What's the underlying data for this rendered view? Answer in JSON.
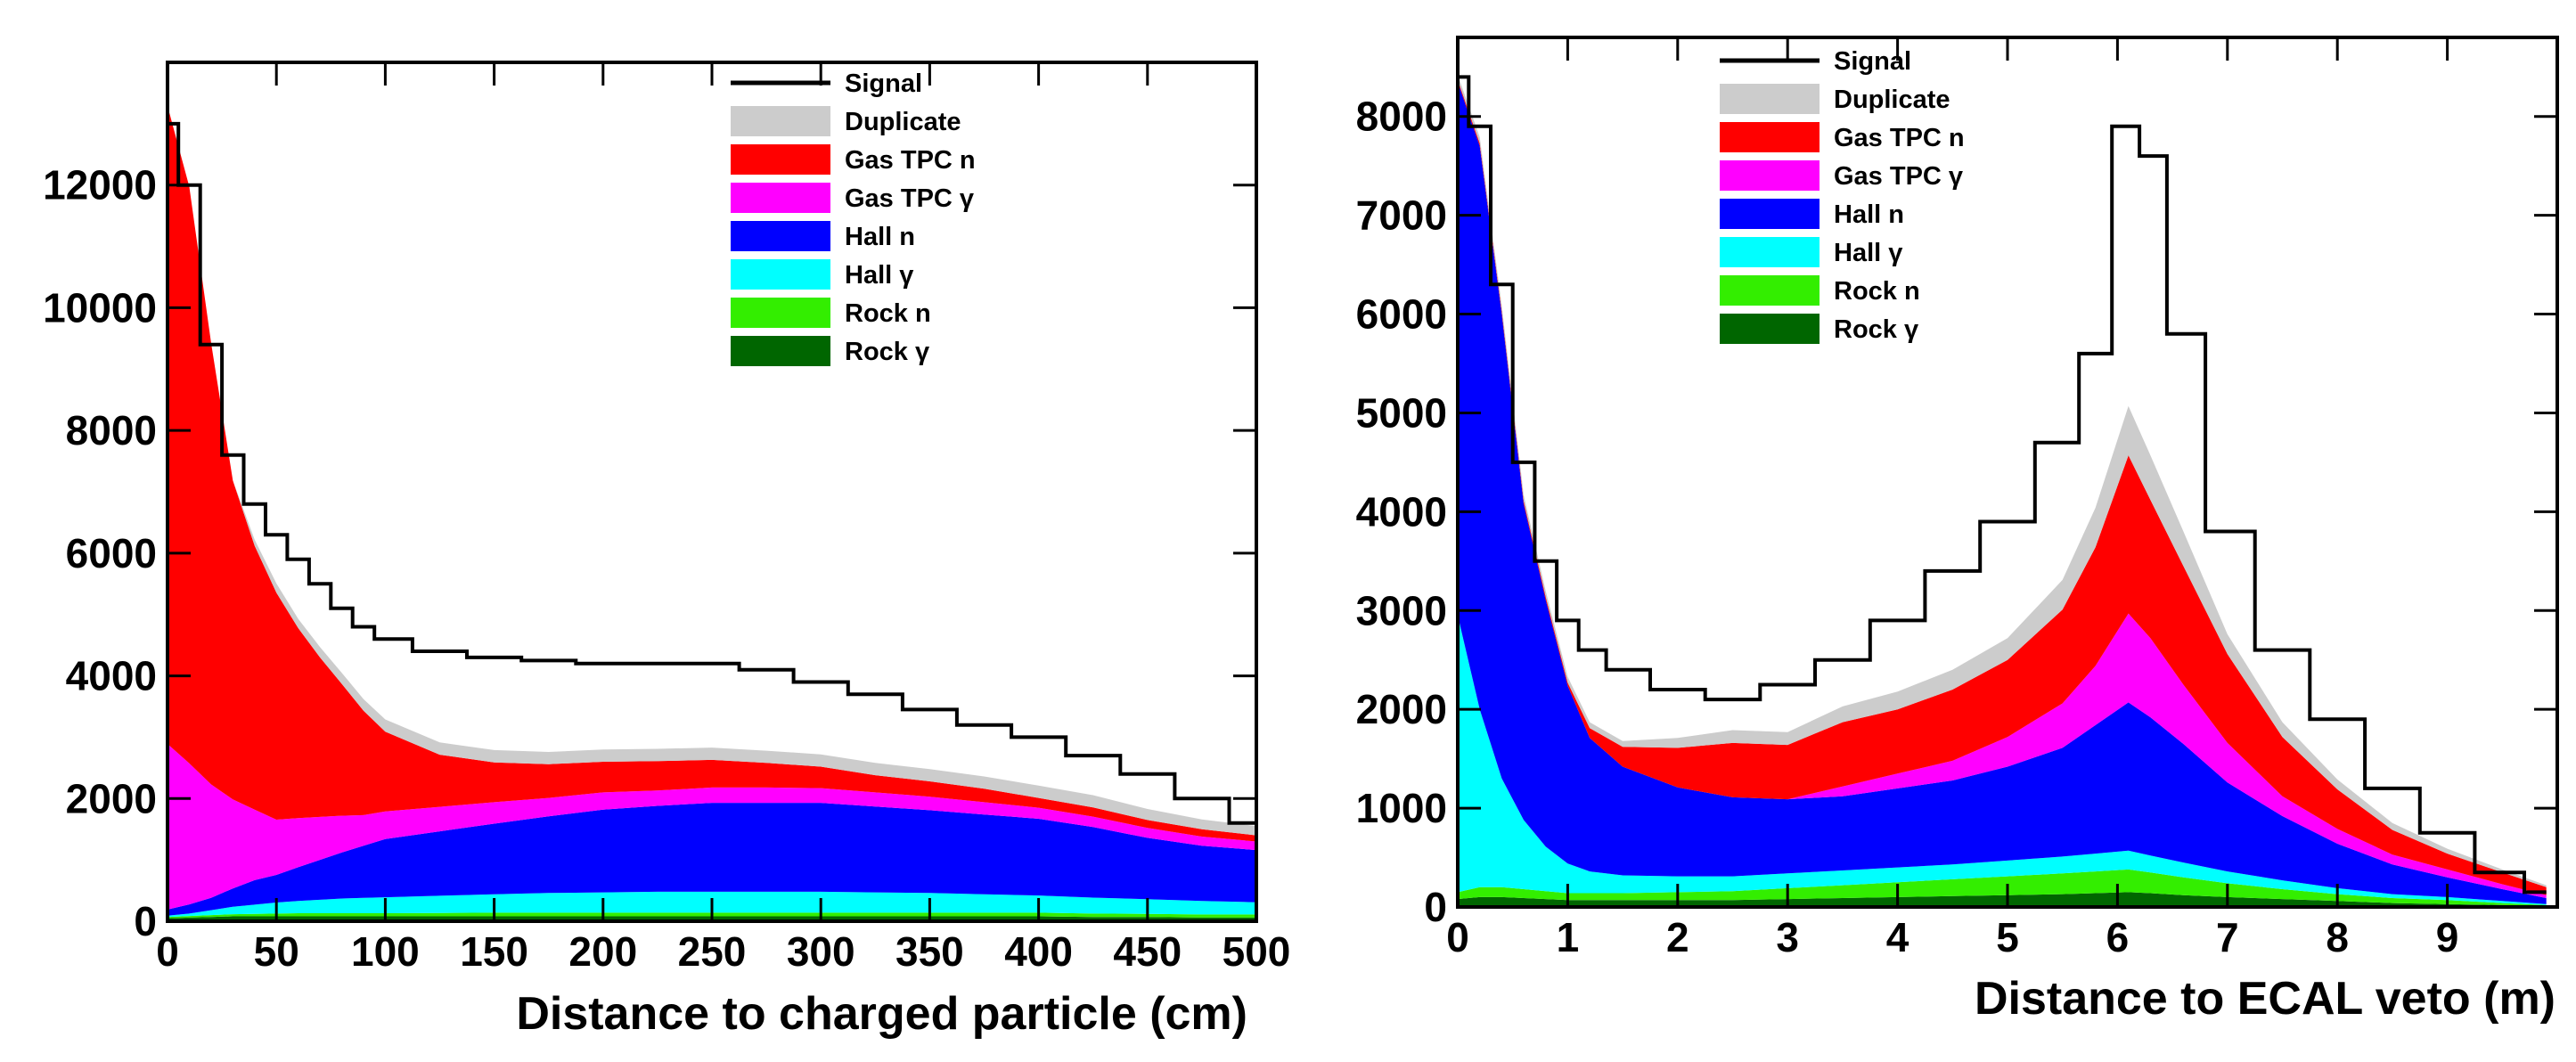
{
  "chart_data": [
    {
      "type": "area",
      "stacked": true,
      "xlabel": "Distance to charged particle (cm)",
      "ylabel": "",
      "xlim": [
        0,
        500
      ],
      "ylim": [
        0,
        14000
      ],
      "x_ticks": [
        "0",
        "50",
        "100",
        "150",
        "200",
        "250",
        "300",
        "350",
        "400",
        "450",
        "500"
      ],
      "y_ticks": [
        "0",
        "2000",
        "4000",
        "6000",
        "8000",
        "10000",
        "12000"
      ],
      "legend_position": "top-right",
      "x": [
        0,
        10,
        20,
        30,
        40,
        50,
        60,
        70,
        80,
        90,
        100,
        125,
        150,
        175,
        200,
        225,
        250,
        275,
        300,
        325,
        350,
        375,
        400,
        425,
        450,
        475,
        500
      ],
      "series": [
        {
          "name": "Rock γ",
          "color": "#006600",
          "values": [
            50,
            60,
            70,
            80,
            80,
            80,
            80,
            80,
            80,
            80,
            80,
            80,
            80,
            80,
            80,
            80,
            80,
            80,
            80,
            80,
            80,
            80,
            80,
            70,
            70,
            60,
            60
          ]
        },
        {
          "name": "Rock n",
          "color": "#33ee00",
          "values": [
            20,
            25,
            30,
            35,
            40,
            45,
            50,
            50,
            50,
            50,
            50,
            55,
            60,
            60,
            60,
            60,
            60,
            60,
            60,
            60,
            60,
            60,
            60,
            55,
            50,
            50,
            50
          ]
        },
        {
          "name": "Hall γ",
          "color": "#00ffff",
          "values": [
            20,
            40,
            80,
            120,
            150,
            180,
            200,
            220,
            240,
            250,
            260,
            280,
            300,
            320,
            330,
            340,
            340,
            340,
            340,
            330,
            320,
            300,
            280,
            260,
            240,
            220,
            200
          ]
        },
        {
          "name": "Hall n",
          "color": "#0000ff",
          "values": [
            100,
            150,
            200,
            300,
            400,
            450,
            550,
            650,
            750,
            850,
            950,
            1050,
            1150,
            1250,
            1350,
            1400,
            1450,
            1450,
            1450,
            1400,
            1350,
            1300,
            1250,
            1150,
            1000,
            900,
            850
          ]
        },
        {
          "name": "Gas TPC γ",
          "color": "#ff00ff",
          "values": [
            2700,
            2300,
            1850,
            1450,
            1150,
            900,
            800,
            700,
            600,
            500,
            450,
            400,
            350,
            300,
            280,
            250,
            250,
            250,
            240,
            230,
            220,
            200,
            180,
            170,
            160,
            150,
            140
          ]
        },
        {
          "name": "Gas TPC n",
          "color": "#ff0000",
          "values": [
            10400,
            9400,
            7200,
            5200,
            4300,
            3700,
            3100,
            2600,
            2150,
            1700,
            1300,
            850,
            650,
            550,
            500,
            480,
            450,
            400,
            350,
            280,
            250,
            220,
            160,
            150,
            130,
            120,
            100
          ]
        },
        {
          "name": "Duplicate",
          "color": "#cccccc",
          "values": [
            0,
            0,
            0,
            0,
            100,
            150,
            150,
            170,
            180,
            190,
            200,
            200,
            200,
            200,
            200,
            200,
            200,
            200,
            200,
            200,
            200,
            200,
            200,
            200,
            180,
            160,
            150
          ]
        },
        {
          "name": "Signal",
          "color": "#000000",
          "type": "line",
          "values": [
            13000,
            12000,
            9400,
            7600,
            6800,
            6300,
            5900,
            5500,
            5100,
            4800,
            4600,
            4400,
            4300,
            4250,
            4200,
            4200,
            4200,
            4100,
            3900,
            3700,
            3450,
            3200,
            3000,
            2700,
            2400,
            2000,
            1600
          ]
        }
      ]
    },
    {
      "type": "area",
      "stacked": true,
      "xlabel": "Distance to ECAL veto (m)",
      "ylabel": "",
      "xlim": [
        0,
        10
      ],
      "ylim": [
        0,
        8800
      ],
      "x_ticks": [
        "0",
        "1",
        "2",
        "3",
        "4",
        "5",
        "6",
        "7",
        "8",
        "9"
      ],
      "y_ticks": [
        "0",
        "1000",
        "2000",
        "3000",
        "4000",
        "5000",
        "6000",
        "7000",
        "8000"
      ],
      "legend_position": "top-right",
      "x": [
        0,
        0.2,
        0.4,
        0.6,
        0.8,
        1,
        1.2,
        1.5,
        2,
        2.5,
        3,
        3.5,
        4,
        4.5,
        5,
        5.5,
        5.8,
        6.1,
        6.3,
        6.6,
        7,
        7.5,
        8,
        8.5,
        9,
        9.5,
        9.9
      ],
      "series": [
        {
          "name": "Rock γ",
          "color": "#006600",
          "values": [
            80,
            100,
            100,
            90,
            80,
            70,
            70,
            70,
            70,
            70,
            80,
            90,
            100,
            110,
            120,
            130,
            140,
            150,
            140,
            120,
            100,
            80,
            60,
            40,
            30,
            20,
            10
          ]
        },
        {
          "name": "Rock n",
          "color": "#33ee00",
          "values": [
            70,
            100,
            100,
            90,
            80,
            70,
            70,
            70,
            80,
            90,
            110,
            130,
            150,
            170,
            190,
            210,
            220,
            230,
            210,
            180,
            140,
            100,
            70,
            50,
            40,
            20,
            10
          ]
        },
        {
          "name": "Hall γ",
          "color": "#00ffff",
          "values": [
            2800,
            1800,
            1100,
            700,
            450,
            300,
            220,
            180,
            160,
            150,
            150,
            150,
            150,
            150,
            160,
            170,
            180,
            190,
            170,
            150,
            120,
            90,
            60,
            40,
            30,
            20,
            10
          ]
        },
        {
          "name": "Hall n",
          "color": "#0000ff",
          "values": [
            5400,
            5700,
            4700,
            3200,
            2500,
            1800,
            1350,
            1100,
            900,
            800,
            750,
            750,
            800,
            850,
            950,
            1100,
            1300,
            1500,
            1400,
            1200,
            900,
            650,
            450,
            300,
            200,
            120,
            60
          ]
        },
        {
          "name": "Gas TPC γ",
          "color": "#ff00ff",
          "values": [
            0,
            0,
            0,
            0,
            0,
            0,
            0,
            0,
            0,
            0,
            0,
            100,
            150,
            200,
            300,
            450,
            600,
            900,
            800,
            600,
            400,
            200,
            150,
            100,
            80,
            50,
            30
          ]
        },
        {
          "name": "Gas TPC n",
          "color": "#ff0000",
          "values": [
            20,
            30,
            30,
            30,
            30,
            30,
            100,
            200,
            400,
            550,
            550,
            650,
            650,
            720,
            780,
            950,
            1200,
            1600,
            1400,
            1200,
            900,
            600,
            400,
            250,
            160,
            120,
            80
          ]
        },
        {
          "name": "Duplicate",
          "color": "#cccccc",
          "values": [
            50,
            60,
            60,
            60,
            60,
            60,
            60,
            60,
            100,
            130,
            130,
            160,
            180,
            200,
            220,
            300,
            400,
            500,
            450,
            350,
            200,
            150,
            100,
            70,
            50,
            30,
            20
          ]
        },
        {
          "name": "Signal",
          "color": "#000000",
          "type": "line",
          "values": [
            8400,
            7900,
            6300,
            4500,
            3500,
            2900,
            2600,
            2400,
            2200,
            2100,
            2250,
            2500,
            2900,
            3400,
            3900,
            4700,
            5600,
            7900,
            7600,
            5800,
            3800,
            2600,
            1900,
            1200,
            750,
            350,
            150
          ]
        }
      ]
    }
  ]
}
